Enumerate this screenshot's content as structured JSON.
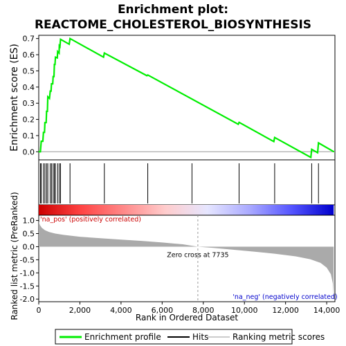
{
  "title_line1": "Enrichment plot:",
  "title_line2": "REACTOME_CHOLESTEROL_BIOSYNTHESIS",
  "chart_data": {
    "type": "line",
    "x_range": [
      0,
      14400
    ],
    "xlabel": "Rank in Ordered Dataset",
    "x_ticks": [
      0,
      2000,
      4000,
      6000,
      8000,
      10000,
      12000,
      14000
    ],
    "x_tick_labels": [
      "0",
      "2,000",
      "4,000",
      "6,000",
      "8,000",
      "10,000",
      "12,000",
      "14,000"
    ],
    "es_panel": {
      "ylabel": "Enrichment score (ES)",
      "ylim": [
        -0.05,
        0.72
      ],
      "y_ticks": [
        0.0,
        0.1,
        0.2,
        0.3,
        0.4,
        0.5,
        0.6,
        0.7
      ],
      "y_tick_labels": [
        "0.0",
        "0.1",
        "0.2",
        "0.3",
        "0.4",
        "0.5",
        "0.6",
        "0.7"
      ],
      "series_name": "Enrichment profile",
      "color": "#00ee00",
      "profile": [
        [
          0,
          0.0
        ],
        [
          80,
          0.0
        ],
        [
          120,
          0.065
        ],
        [
          200,
          0.065
        ],
        [
          230,
          0.12
        ],
        [
          280,
          0.12
        ],
        [
          300,
          0.18
        ],
        [
          360,
          0.18
        ],
        [
          380,
          0.25
        ],
        [
          420,
          0.25
        ],
        [
          440,
          0.34
        ],
        [
          520,
          0.33
        ],
        [
          560,
          0.375
        ],
        [
          600,
          0.375
        ],
        [
          620,
          0.42
        ],
        [
          680,
          0.42
        ],
        [
          700,
          0.465
        ],
        [
          740,
          0.465
        ],
        [
          760,
          0.54
        ],
        [
          790,
          0.54
        ],
        [
          810,
          0.585
        ],
        [
          900,
          0.58
        ],
        [
          920,
          0.62
        ],
        [
          990,
          0.61
        ],
        [
          1000,
          0.655
        ],
        [
          1030,
          0.65
        ],
        [
          1060,
          0.695
        ],
        [
          1480,
          0.665
        ],
        [
          1520,
          0.7
        ],
        [
          3150,
          0.585
        ],
        [
          3190,
          0.61
        ],
        [
          5260,
          0.47
        ],
        [
          5300,
          0.475
        ],
        [
          9700,
          0.17
        ],
        [
          9740,
          0.182
        ],
        [
          11430,
          0.063
        ],
        [
          11470,
          0.088
        ],
        [
          13230,
          -0.035
        ],
        [
          13270,
          0.015
        ],
        [
          13560,
          -0.006
        ],
        [
          13600,
          0.055
        ],
        [
          14350,
          0.0
        ]
      ],
      "hits": [
        80,
        120,
        230,
        300,
        380,
        440,
        560,
        620,
        700,
        760,
        810,
        920,
        1000,
        1060,
        1520,
        3190,
        5300,
        7450,
        9740,
        11470,
        13270,
        13600
      ]
    },
    "metric_panel": {
      "ylabel": "Ranked list metric (PreRanked)",
      "ylim": [
        -2.1,
        1.2
      ],
      "y_ticks": [
        1.0,
        0.5,
        0.0,
        -0.5,
        -1.0,
        -1.5,
        -2.0
      ],
      "y_tick_labels": [
        "1.0",
        "0.5",
        "0.0",
        "-0.5",
        "-1.0",
        "-1.5",
        "-2.0"
      ],
      "series_name": "Ranking metric scores",
      "color": "#aaaaaa",
      "metric": [
        [
          0,
          0.95
        ],
        [
          60,
          0.82
        ],
        [
          150,
          0.72
        ],
        [
          300,
          0.63
        ],
        [
          500,
          0.56
        ],
        [
          800,
          0.5
        ],
        [
          1200,
          0.45
        ],
        [
          2000,
          0.38
        ],
        [
          3000,
          0.32
        ],
        [
          4000,
          0.27
        ],
        [
          5000,
          0.22
        ],
        [
          6000,
          0.16
        ],
        [
          7000,
          0.09
        ],
        [
          7735,
          0.0
        ],
        [
          8500,
          -0.05
        ],
        [
          9500,
          -0.12
        ],
        [
          10500,
          -0.19
        ],
        [
          11500,
          -0.27
        ],
        [
          12500,
          -0.37
        ],
        [
          13200,
          -0.48
        ],
        [
          13700,
          -0.62
        ],
        [
          14000,
          -0.8
        ],
        [
          14200,
          -1.05
        ],
        [
          14300,
          -1.4
        ],
        [
          14340,
          -1.95
        ]
      ],
      "zero_cross": 7735,
      "zero_cross_label": "Zero cross at 7735",
      "pos_label": "'na_pos' (positively correlated)",
      "neg_label": "'na_neg' (negatively correlated)",
      "pos_color": "#cc0000",
      "neg_color": "#0000cc"
    },
    "heatmap_gradient": [
      "#cc0000",
      "#ff4444",
      "#ff8888",
      "#ffcccc",
      "#e6e6ff",
      "#aaaaff",
      "#5555ff",
      "#0000cc"
    ],
    "legend": [
      {
        "label": "Enrichment profile",
        "color": "#00ee00"
      },
      {
        "label": "Hits",
        "color": "#000000"
      },
      {
        "label": "Ranking metric scores",
        "color": "#cccccc"
      }
    ]
  }
}
